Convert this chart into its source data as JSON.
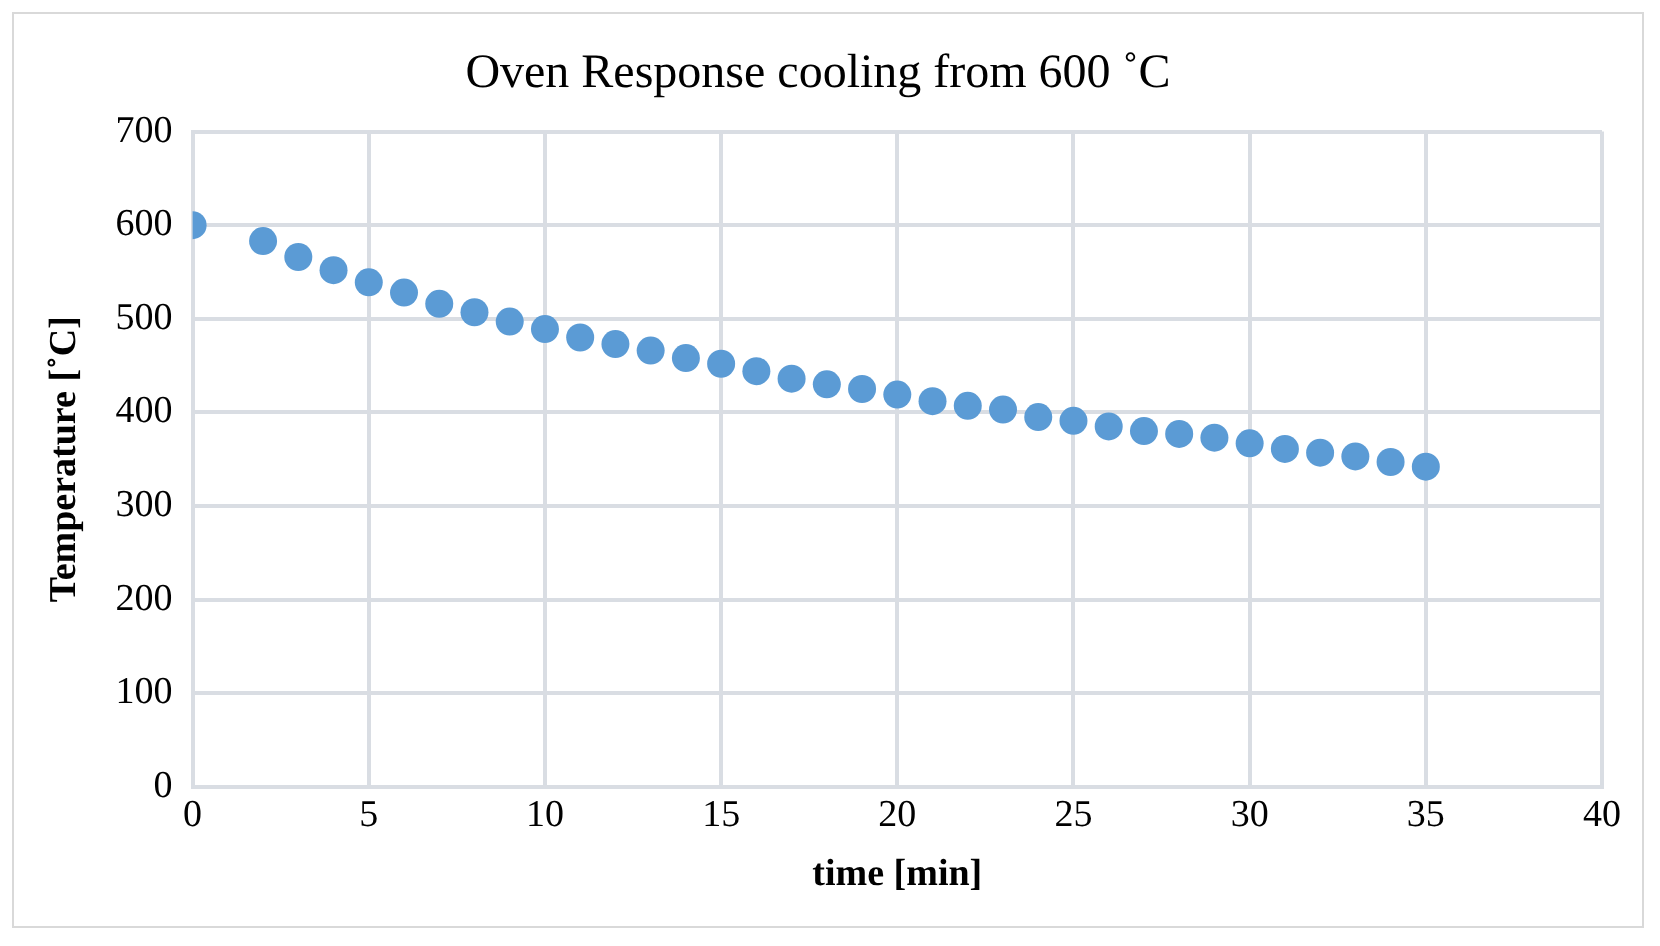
{
  "chart_data": {
    "type": "scatter",
    "title": "Oven Response cooling from 600 ˚C",
    "xlabel": "time [min]",
    "ylabel": "Temperature [˚C]",
    "x": [
      0,
      2,
      3,
      4,
      5,
      6,
      7,
      8,
      9,
      10,
      11,
      12,
      13,
      14,
      15,
      16,
      17,
      18,
      19,
      20,
      21,
      22,
      23,
      24,
      25,
      26,
      27,
      28,
      29,
      30,
      31,
      32,
      33,
      34,
      35
    ],
    "series": [
      {
        "color": "#5b9bd5",
        "values": [
          600,
          583,
          566,
          552,
          539,
          528,
          516,
          507,
          497,
          489,
          480,
          473,
          466,
          458,
          452,
          444,
          436,
          430,
          425,
          419,
          412,
          407,
          403,
          395,
          391,
          385,
          380,
          377,
          373,
          367,
          361,
          357,
          353,
          347,
          342
        ]
      }
    ],
    "xlim": [
      0,
      40
    ],
    "xticks": [
      0,
      5,
      10,
      15,
      20,
      25,
      30,
      35,
      40
    ],
    "ylim": [
      0,
      700
    ],
    "yticks": [
      0,
      100,
      200,
      300,
      400,
      500,
      600,
      700
    ],
    "grid": true,
    "legend": false,
    "marker": "circle"
  }
}
